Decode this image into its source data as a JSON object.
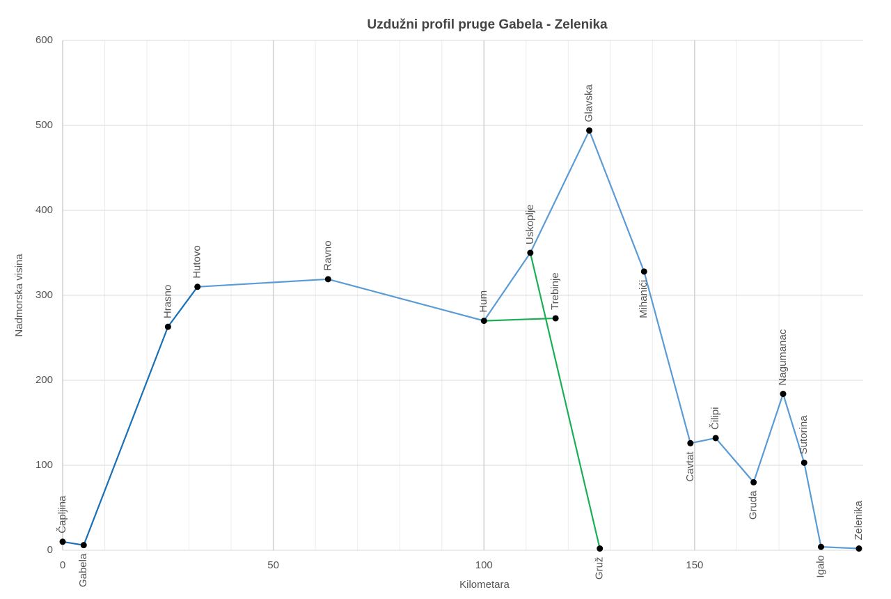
{
  "chart_data": {
    "type": "line",
    "title": "Uzdužni profil pruge Gabela - Zelenika",
    "x_label": "Kilometara",
    "y_label": "Nadmorska visina",
    "xlim": [
      0,
      190
    ],
    "ylim": [
      0,
      600
    ],
    "xticks": [
      0,
      50,
      100,
      150
    ],
    "yticks": [
      0,
      100,
      200,
      300,
      400,
      500,
      600
    ],
    "x_minor_step": 10,
    "grid": true,
    "series": [
      {
        "color": "#1a6fb5",
        "x": [
          0,
          5,
          25,
          32
        ],
        "values": [
          10,
          6,
          263,
          310
        ]
      },
      {
        "color": "#5b9bd5",
        "x": [
          32,
          63,
          100,
          111,
          125,
          138,
          149,
          155,
          164,
          171,
          176,
          180,
          189
        ],
        "values": [
          310,
          319,
          270,
          350,
          494,
          328,
          126,
          132,
          80,
          184,
          103,
          4,
          2
        ]
      },
      {
        "color": "#1aae55",
        "x": [
          100,
          117,
          null,
          111,
          127.5
        ],
        "values": [
          270,
          273,
          null,
          350,
          2
        ]
      }
    ],
    "stations": [
      {
        "label": "Čapljina",
        "x": 0,
        "y": 10,
        "label_position": "above"
      },
      {
        "label": "Gabela",
        "x": 5,
        "y": 6,
        "label_position": "below"
      },
      {
        "label": "Hrasno",
        "x": 25,
        "y": 263,
        "label_position": "above"
      },
      {
        "label": "Hutovo",
        "x": 32,
        "y": 310,
        "label_position": "above"
      },
      {
        "label": "Ravno",
        "x": 63,
        "y": 319,
        "label_position": "above"
      },
      {
        "label": "Hum",
        "x": 100,
        "y": 270,
        "label_position": "above"
      },
      {
        "label": "Uskoplje",
        "x": 111,
        "y": 350,
        "label_position": "above"
      },
      {
        "label": "Trebinje",
        "x": 117,
        "y": 273,
        "label_position": "above"
      },
      {
        "label": "Glavska",
        "x": 125,
        "y": 494,
        "label_position": "above"
      },
      {
        "label": "Gruž",
        "x": 127.5,
        "y": 2,
        "label_position": "below"
      },
      {
        "label": "Mihanići",
        "x": 138,
        "y": 328,
        "label_position": "below"
      },
      {
        "label": "Cavtat",
        "x": 149,
        "y": 126,
        "label_position": "below"
      },
      {
        "label": "Čilipi",
        "x": 155,
        "y": 132,
        "label_position": "above"
      },
      {
        "label": "Gruda",
        "x": 164,
        "y": 80,
        "label_position": "below"
      },
      {
        "label": "Nagumanac",
        "x": 171,
        "y": 184,
        "label_position": "above"
      },
      {
        "label": "Sutorina",
        "x": 176,
        "y": 103,
        "label_position": "above"
      },
      {
        "label": "Igalo",
        "x": 180,
        "y": 4,
        "label_position": "below"
      },
      {
        "label": "Zelenika",
        "x": 189,
        "y": 2,
        "label_position": "above"
      }
    ]
  }
}
